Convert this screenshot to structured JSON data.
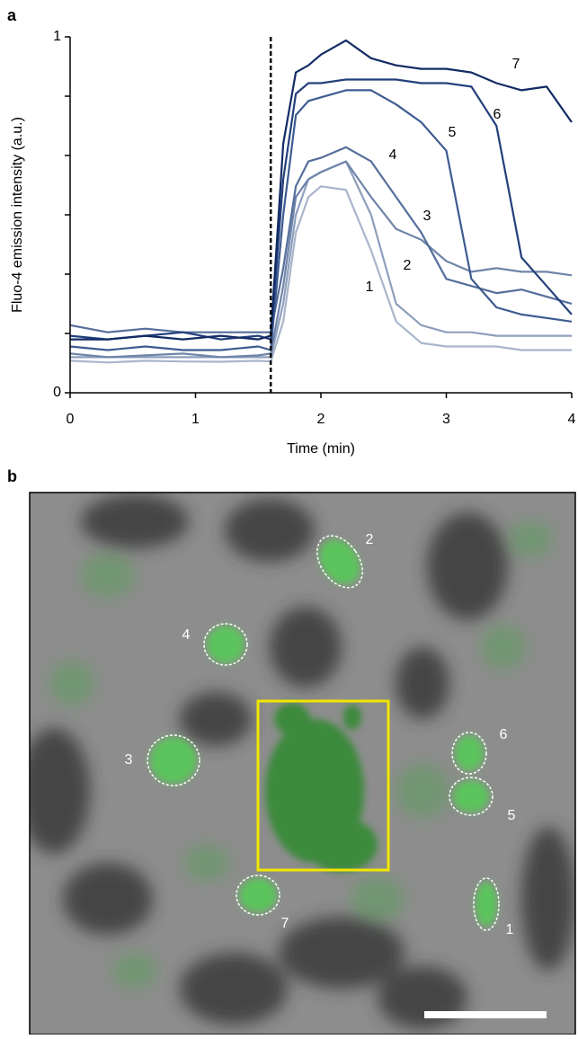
{
  "chart_data": {
    "type": "line",
    "panel_label": "a",
    "xlabel": "Time (min)",
    "ylabel": "Fluo-4 emission intensity (a.u.)",
    "x": [
      0,
      0.3,
      0.6,
      0.9,
      1.2,
      1.5,
      1.6,
      1.7,
      1.8,
      1.9,
      2.0,
      2.2,
      2.4,
      2.6,
      2.8,
      3.0,
      3.2,
      3.4,
      3.6,
      3.8,
      4.0
    ],
    "xlim": [
      0,
      4
    ],
    "xticks": [
      0,
      1,
      2,
      3,
      4
    ],
    "ylim": [
      0,
      1
    ],
    "yticks": [
      0,
      1
    ],
    "yminor_ticks": [
      0.1667,
      0.3333,
      0.5,
      0.6667,
      0.8333
    ],
    "vline_x": 1.6,
    "series": [
      {
        "name": "1",
        "color": "#a9b5ca",
        "values": [
          0.09,
          0.085,
          0.09,
          0.088,
          0.087,
          0.09,
          0.088,
          0.2,
          0.45,
          0.55,
          0.58,
          0.57,
          0.4,
          0.2,
          0.14,
          0.13,
          0.13,
          0.13,
          0.12,
          0.12,
          0.12
        ]
      },
      {
        "name": "2",
        "color": "#8e9ebc",
        "values": [
          0.1,
          0.1,
          0.1,
          0.1,
          0.1,
          0.1,
          0.1,
          0.25,
          0.5,
          0.6,
          0.62,
          0.65,
          0.5,
          0.25,
          0.19,
          0.17,
          0.17,
          0.16,
          0.16,
          0.16,
          0.16
        ]
      },
      {
        "name": "3",
        "color": "#6f84a9",
        "values": [
          0.11,
          0.1,
          0.105,
          0.11,
          0.1,
          0.105,
          0.11,
          0.3,
          0.55,
          0.6,
          0.62,
          0.65,
          0.55,
          0.46,
          0.43,
          0.37,
          0.34,
          0.35,
          0.34,
          0.34,
          0.33
        ]
      },
      {
        "name": "4",
        "color": "#556e9b",
        "values": [
          0.19,
          0.17,
          0.18,
          0.17,
          0.17,
          0.17,
          0.17,
          0.35,
          0.58,
          0.65,
          0.66,
          0.69,
          0.65,
          0.55,
          0.45,
          0.32,
          0.3,
          0.28,
          0.29,
          0.27,
          0.25
        ]
      },
      {
        "name": "5",
        "color": "#3d5b90",
        "values": [
          0.13,
          0.12,
          0.13,
          0.12,
          0.12,
          0.13,
          0.12,
          0.5,
          0.78,
          0.82,
          0.83,
          0.85,
          0.85,
          0.81,
          0.76,
          0.68,
          0.32,
          0.24,
          0.22,
          0.21,
          0.2
        ]
      },
      {
        "name": "6",
        "color": "#23407b",
        "values": [
          0.16,
          0.15,
          0.16,
          0.17,
          0.15,
          0.16,
          0.15,
          0.6,
          0.84,
          0.87,
          0.87,
          0.88,
          0.88,
          0.88,
          0.87,
          0.87,
          0.86,
          0.75,
          0.38,
          0.3,
          0.22
        ]
      },
      {
        "name": "7",
        "color": "#122b64",
        "values": [
          0.15,
          0.15,
          0.16,
          0.15,
          0.16,
          0.15,
          0.16,
          0.7,
          0.9,
          0.92,
          0.95,
          0.99,
          0.94,
          0.92,
          0.91,
          0.91,
          0.9,
          0.87,
          0.85,
          0.86,
          0.76
        ]
      }
    ]
  },
  "image_panel": {
    "panel_label": "b",
    "cell_labels": [
      "2",
      "4",
      "3",
      "6",
      "5",
      "7",
      "1"
    ]
  }
}
